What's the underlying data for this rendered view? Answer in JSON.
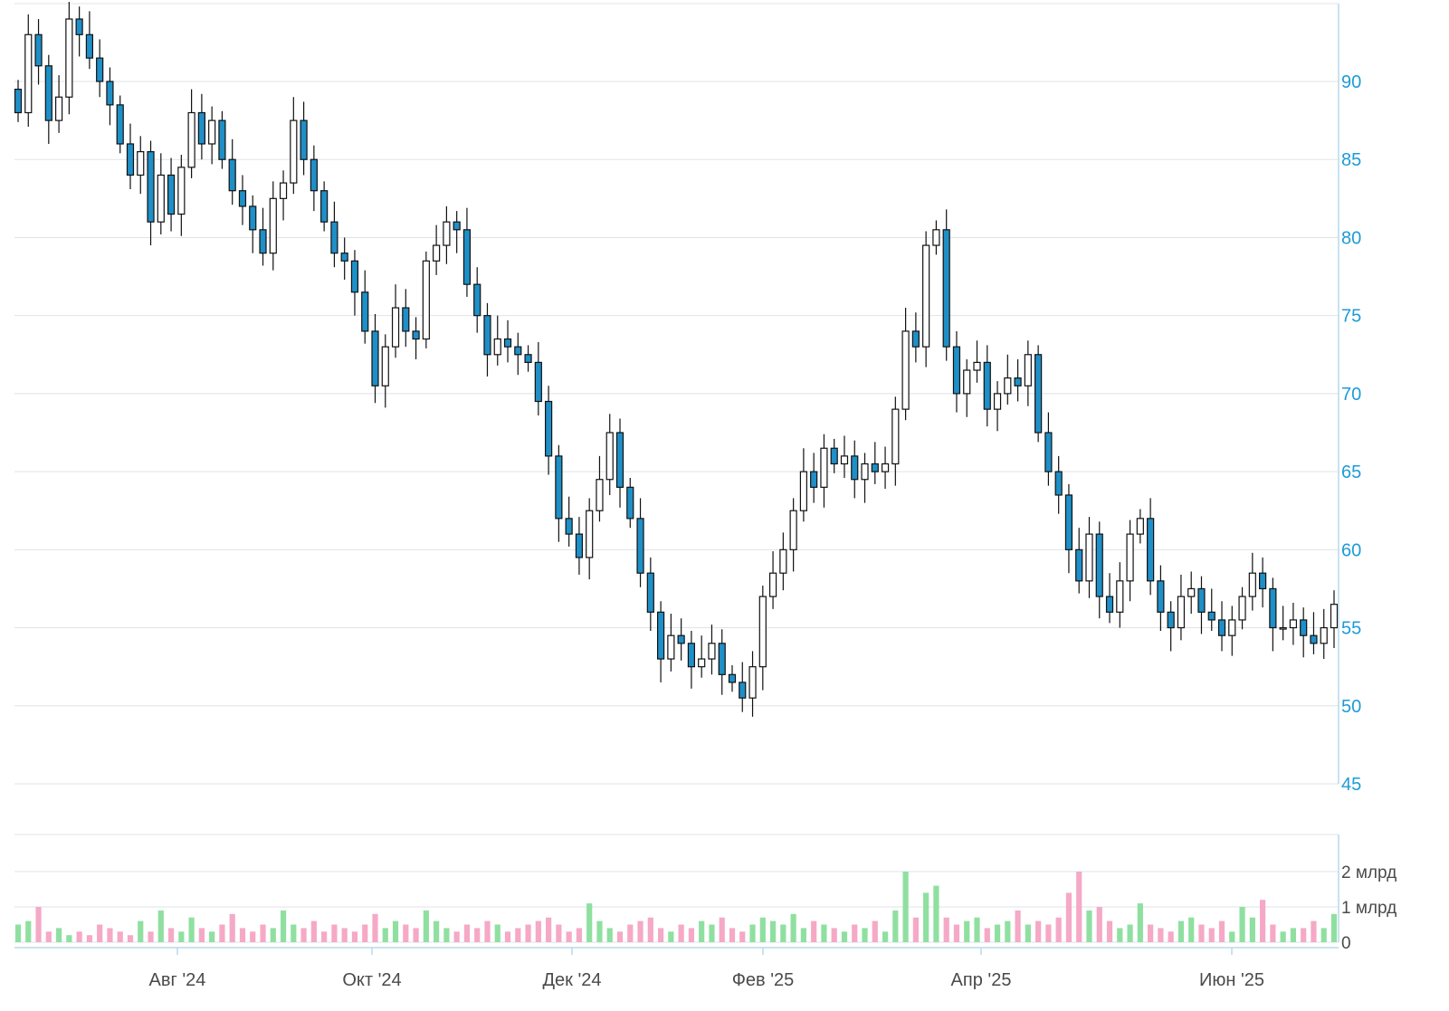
{
  "chart_data": [
    {
      "type": "candlestick",
      "title": "",
      "xlabel": "",
      "ylabel": "",
      "x_ticks": [
        "Авг '24",
        "Окт '24",
        "Дек '24",
        "Фев '25",
        "Апр '25",
        "Июн '25"
      ],
      "y_ticks": [
        "45",
        "50",
        "55",
        "60",
        "65",
        "70",
        "75",
        "80",
        "85",
        "90"
      ],
      "ylim": [
        45,
        95
      ],
      "grid": true,
      "colors": {
        "up": "#ffffff",
        "down": "#1f8fc7",
        "wick": "#111111",
        "axis_text": "#1e9bd7"
      },
      "close_series": [
        88.0,
        93.0,
        91.0,
        87.5,
        89.0,
        94.0,
        93.0,
        91.5,
        90.0,
        88.5,
        86.0,
        84.0,
        85.5,
        81.0,
        84.0,
        81.5,
        84.5,
        88.0,
        86.0,
        87.5,
        85.0,
        83.0,
        82.0,
        80.5,
        79.0,
        82.5,
        83.5,
        87.5,
        85.0,
        83.0,
        81.0,
        79.0,
        78.5,
        76.5,
        74.0,
        70.5,
        73.0,
        75.5,
        74.0,
        73.5,
        78.5,
        79.5,
        81.0,
        80.5,
        77.0,
        75.0,
        72.5,
        73.5,
        73.0,
        72.5,
        72.0,
        69.5,
        66.0,
        62.0,
        61.0,
        59.5,
        62.5,
        64.5,
        67.5,
        64.0,
        62.0,
        58.5,
        56.0,
        53.0,
        54.5,
        54.0,
        52.5,
        53.0,
        54.0,
        52.0,
        51.5,
        50.5,
        52.5,
        57.0,
        58.5,
        60.0,
        62.5,
        65.0,
        64.0,
        66.5,
        65.5,
        66.0,
        64.5,
        65.5,
        65.0,
        65.5,
        69.0,
        74.0,
        73.0,
        79.5,
        80.5,
        73.0,
        70.0,
        71.5,
        72.0,
        69.0,
        70.0,
        71.0,
        70.5,
        72.5,
        67.5,
        65.0,
        63.5,
        60.0,
        58.0,
        61.0,
        57.0,
        56.0,
        58.0,
        61.0,
        62.0,
        58.0,
        56.0,
        55.0,
        57.0,
        57.5,
        56.0,
        55.5,
        54.5,
        55.5,
        57.0,
        58.5,
        57.5,
        55.0,
        55.0,
        55.5,
        54.5,
        54.0,
        55.0,
        56.5
      ]
    },
    {
      "type": "bar",
      "title": "",
      "y_ticks": [
        "0",
        "1 млрд",
        "2 млрд"
      ],
      "ylim": [
        0,
        2.1
      ],
      "colors": {
        "up": "#8fe0a0",
        "down": "#f5a9c6"
      },
      "volume_bn": [
        0.5,
        0.6,
        1.0,
        0.3,
        0.4,
        0.2,
        0.3,
        0.2,
        0.5,
        0.4,
        0.3,
        0.2,
        0.6,
        0.3,
        0.9,
        0.4,
        0.3,
        0.7,
        0.4,
        0.3,
        0.5,
        0.8,
        0.4,
        0.3,
        0.5,
        0.4,
        0.9,
        0.5,
        0.4,
        0.6,
        0.3,
        0.5,
        0.4,
        0.3,
        0.5,
        0.8,
        0.4,
        0.6,
        0.5,
        0.4,
        0.9,
        0.6,
        0.4,
        0.3,
        0.5,
        0.4,
        0.6,
        0.5,
        0.3,
        0.4,
        0.5,
        0.6,
        0.7,
        0.5,
        0.3,
        0.4,
        1.1,
        0.6,
        0.4,
        0.3,
        0.5,
        0.6,
        0.7,
        0.4,
        0.3,
        0.5,
        0.4,
        0.6,
        0.5,
        0.7,
        0.4,
        0.3,
        0.5,
        0.7,
        0.6,
        0.5,
        0.8,
        0.4,
        0.6,
        0.5,
        0.4,
        0.3,
        0.5,
        0.4,
        0.6,
        0.3,
        0.9,
        2.0,
        0.7,
        1.4,
        1.6,
        0.7,
        0.5,
        0.6,
        0.7,
        0.4,
        0.5,
        0.6,
        0.9,
        0.5,
        0.6,
        0.5,
        0.7,
        1.4,
        2.0,
        0.9,
        1.0,
        0.6,
        0.4,
        0.5,
        1.1,
        0.5,
        0.4,
        0.3,
        0.6,
        0.7,
        0.5,
        0.4,
        0.6,
        0.3,
        1.0,
        0.7,
        1.2,
        0.5,
        0.3,
        0.4,
        0.4,
        0.6,
        0.4,
        0.8
      ]
    }
  ]
}
